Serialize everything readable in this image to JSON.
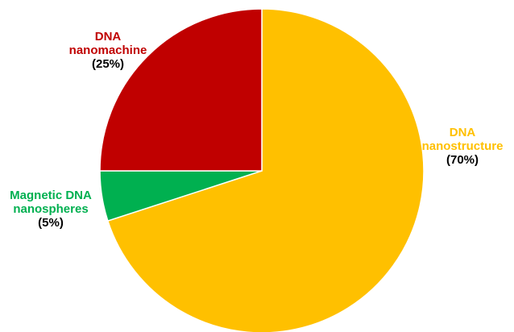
{
  "colors": {
    "DNA nanostructure": "#FFC000",
    "DNA nanomachine": "#C00000",
    "Magnetic DNA nanospheres": "#00B050"
  },
  "chart_data": {
    "type": "pie",
    "slices": [
      {
        "label_lines": [
          "DNA",
          "nanostructure"
        ],
        "percent_label": "(70%)",
        "value": 70,
        "color": "#FFC000"
      },
      {
        "label_lines": [
          "Magnetic DNA",
          "nanospheres"
        ],
        "percent_label": "(5%)",
        "value": 5,
        "color": "#00B050"
      },
      {
        "label_lines": [
          "DNA",
          "nanomachine"
        ],
        "percent_label": "(25%)",
        "value": 25,
        "color": "#C00000"
      }
    ],
    "start_angle": "12 o'clock",
    "direction": "clockwise",
    "slice_border": "#ffffff"
  }
}
